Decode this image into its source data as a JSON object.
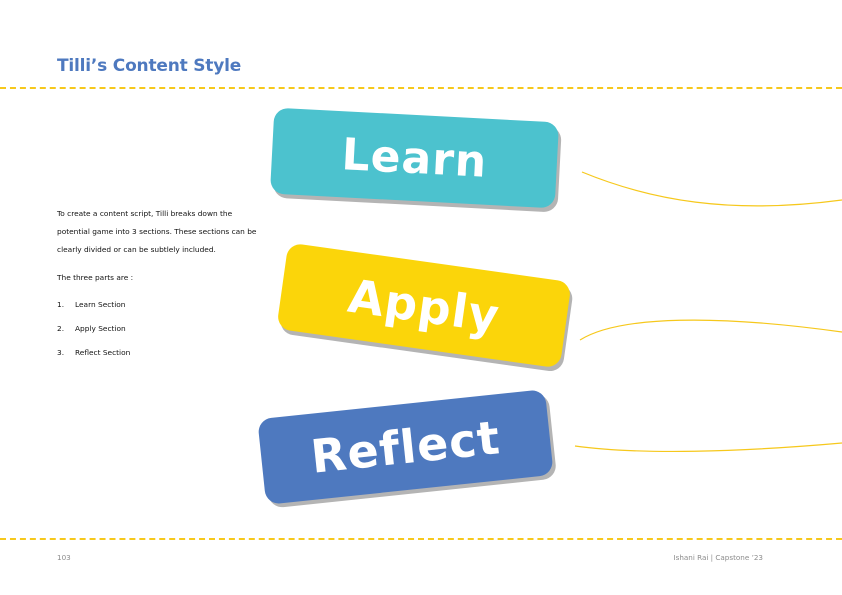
{
  "page": {
    "title": "Tilli’s Content Style",
    "intro": "To create a content script, Tilli breaks down the potential game into 3 sections. These sections can be clearly divided or can be subtlely included.",
    "parts_heading": "The three parts are :",
    "parts": [
      {
        "number": "1.",
        "label": "Learn Section"
      },
      {
        "number": "2.",
        "label": "Apply Section"
      },
      {
        "number": "3.",
        "label": "Reflect Section"
      }
    ]
  },
  "cards": {
    "learn": "Learn",
    "apply": "Apply",
    "reflect": "Reflect"
  },
  "colors": {
    "accent_blue": "#4e79bf",
    "accent_teal": "#4cc2ce",
    "accent_yellow": "#fbd50a",
    "divider_yellow": "#f6c81c"
  },
  "footer": {
    "page_number": "103",
    "author": "Ishani Rai | Capstone ’23"
  }
}
